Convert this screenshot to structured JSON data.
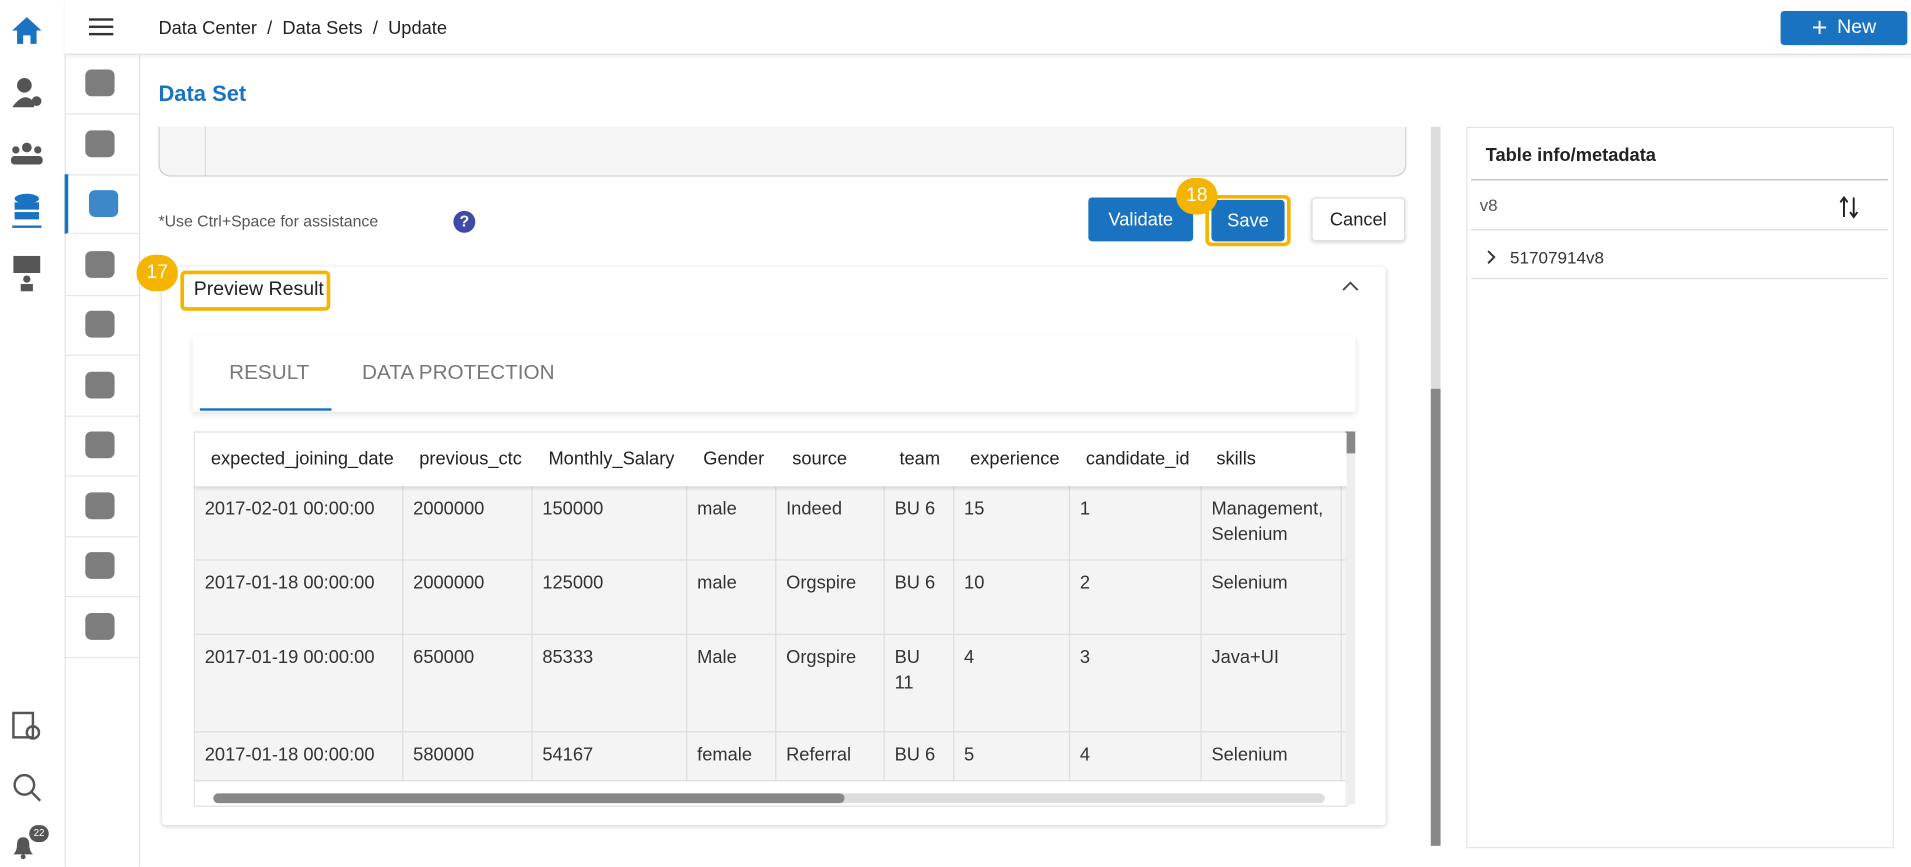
{
  "header": {
    "breadcrumb": [
      "Data Center",
      "Data Sets",
      "Update"
    ],
    "new_button": "New"
  },
  "page_title": "Data Set",
  "editor": {
    "hint": "*Use Ctrl+Space for assistance",
    "validate": "Validate",
    "save": "Save",
    "cancel": "Cancel",
    "save_step": "18"
  },
  "preview": {
    "title": "Preview Result",
    "step": "17",
    "tabs": [
      "RESULT",
      "DATA PROTECTION"
    ],
    "table": {
      "columns": [
        "expected_joining_date",
        "previous_ctc",
        "Monthly_Salary",
        "Gender",
        "source",
        "team",
        "experience",
        "candidate_id",
        "skills"
      ],
      "rows": [
        [
          "2017-02-01 00:00:00",
          "2000000",
          "150000",
          "male",
          "Indeed",
          "BU 6",
          "15",
          "1",
          "Management, Selenium"
        ],
        [
          "2017-01-18 00:00:00",
          "2000000",
          "125000",
          "male",
          "Orgspire",
          "BU 6",
          "10",
          "2",
          "Selenium"
        ],
        [
          "2017-01-19 00:00:00",
          "650000",
          "85333",
          "Male",
          "Orgspire",
          "BU 11",
          "4",
          "3",
          "Java+UI"
        ],
        [
          "2017-01-18 00:00:00",
          "580000",
          "54167",
          "female",
          "Referral",
          "BU 6",
          "5",
          "4",
          "Selenium"
        ]
      ]
    }
  },
  "side_panel": {
    "title": "Table info/metadata",
    "search": "v8",
    "items": [
      "51707914v8"
    ]
  },
  "notifications": {
    "count": "22"
  }
}
